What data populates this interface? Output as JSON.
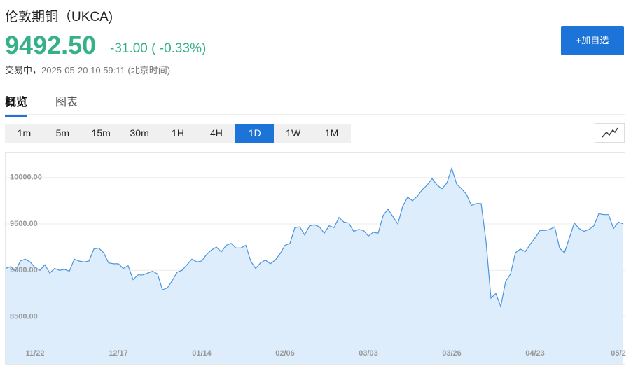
{
  "header": {
    "title": "伦敦期铜（UKCA)",
    "price": "9492.50",
    "change": "-31.00",
    "change_percent": "( -0.33%)",
    "status": "交易中，",
    "timestamp": "2025-05-20 10:59:11",
    "timezone": "(北京时间)",
    "watchlist_button": "+加自选"
  },
  "tabs": [
    "概览",
    "图表"
  ],
  "periods": [
    "1m",
    "5m",
    "15m",
    "30m",
    "1H",
    "4H",
    "1D",
    "1W",
    "1M"
  ],
  "active_period": "1D",
  "chart_data": {
    "type": "area",
    "color": "#4a94dc",
    "fill_color": "#deedfb",
    "grid": true,
    "ylim": [
      7990,
      10270
    ],
    "yticks": [
      {
        "value": 8500,
        "label": "8500.00"
      },
      {
        "value": 9000,
        "label": "9000.00"
      },
      {
        "value": 9500,
        "label": "9500.00"
      },
      {
        "value": 10000,
        "label": "10000.00"
      }
    ],
    "categories": [
      null,
      null,
      null,
      null,
      null,
      null,
      "11/22",
      null,
      null,
      null,
      null,
      null,
      null,
      null,
      null,
      null,
      null,
      null,
      null,
      null,
      null,
      null,
      null,
      "12/17",
      null,
      null,
      null,
      null,
      null,
      null,
      null,
      null,
      null,
      null,
      null,
      null,
      null,
      null,
      null,
      null,
      "01/14",
      null,
      null,
      null,
      null,
      null,
      null,
      null,
      null,
      null,
      null,
      null,
      null,
      null,
      null,
      null,
      null,
      "02/06",
      null,
      null,
      null,
      null,
      null,
      null,
      null,
      null,
      null,
      null,
      null,
      null,
      null,
      null,
      null,
      null,
      "03/03",
      null,
      null,
      null,
      null,
      null,
      null,
      null,
      null,
      null,
      null,
      null,
      null,
      null,
      null,
      null,
      null,
      "03/26",
      null,
      null,
      null,
      null,
      null,
      null,
      null,
      null,
      null,
      null,
      null,
      null,
      null,
      null,
      null,
      null,
      "04/23",
      null,
      null,
      null,
      null,
      null,
      null,
      null,
      null,
      null,
      null,
      null,
      null,
      null,
      null,
      null,
      null,
      "05/2",
      null
    ],
    "values": [
      9020,
      9040,
      8990,
      9100,
      9120,
      9090,
      9030,
      9000,
      9060,
      8970,
      9020,
      9000,
      9010,
      8990,
      9120,
      9100,
      9090,
      9100,
      9230,
      9240,
      9190,
      9080,
      9070,
      9070,
      9020,
      9050,
      8900,
      8950,
      8950,
      8970,
      8990,
      8960,
      8790,
      8810,
      8890,
      8980,
      9000,
      9060,
      9120,
      9090,
      9100,
      9170,
      9220,
      9250,
      9200,
      9270,
      9290,
      9240,
      9240,
      9270,
      9100,
      9020,
      9080,
      9110,
      9070,
      9110,
      9180,
      9270,
      9290,
      9460,
      9470,
      9380,
      9480,
      9490,
      9470,
      9400,
      9480,
      9460,
      9570,
      9520,
      9510,
      9420,
      9440,
      9430,
      9370,
      9410,
      9400,
      9590,
      9660,
      9580,
      9500,
      9690,
      9790,
      9750,
      9800,
      9870,
      9920,
      9990,
      9920,
      9880,
      9940,
      10100,
      9930,
      9880,
      9820,
      9700,
      9720,
      9720,
      9310,
      8700,
      8750,
      8610,
      8880,
      8960,
      9190,
      9230,
      9200,
      9280,
      9350,
      9430,
      9430,
      9440,
      9470,
      9240,
      9190,
      9350,
      9510,
      9450,
      9420,
      9440,
      9480,
      9610,
      9600,
      9600,
      9450,
      9520,
      9500
    ]
  }
}
